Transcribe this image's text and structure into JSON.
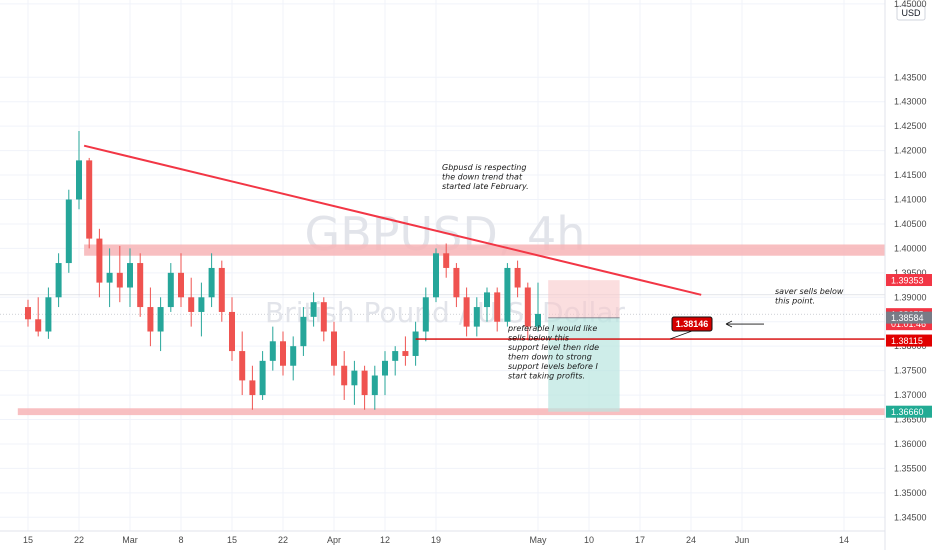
{
  "chart_data": {
    "type": "candlestick",
    "symbol_watermark": "GBPUSD, 4h",
    "name_watermark": "British Pound / U.S. Dollar",
    "currency_label": "USD",
    "x_ticks": [
      {
        "label": "15",
        "i": 0
      },
      {
        "label": "22",
        "i": 5
      },
      {
        "label": "Mar",
        "i": 10
      },
      {
        "label": "8",
        "i": 15
      },
      {
        "label": "15",
        "i": 20
      },
      {
        "label": "22",
        "i": 25
      },
      {
        "label": "Apr",
        "i": 30
      },
      {
        "label": "12",
        "i": 35
      },
      {
        "label": "19",
        "i": 40
      },
      {
        "label": "May",
        "i": 50
      },
      {
        "label": "10",
        "i": 55
      },
      {
        "label": "17",
        "i": 60
      },
      {
        "label": "24",
        "i": 65
      },
      {
        "label": "Jun",
        "i": 70
      },
      {
        "label": "14",
        "i": 80
      }
    ],
    "y_ticks": [
      "1.45000",
      "1.43500",
      "1.43000",
      "1.42500",
      "1.42000",
      "1.41500",
      "1.41000",
      "1.40500",
      "1.40000",
      "1.39500",
      "1.39000",
      "1.38500",
      "1.38000",
      "1.37500",
      "1.37000",
      "1.36500",
      "1.36000",
      "1.35500",
      "1.35000",
      "1.34500"
    ],
    "ylim": [
      1.3422,
      1.4508
    ],
    "price_tags": [
      {
        "value": 1.39353,
        "label": "1.39353",
        "color": "#f23645"
      },
      {
        "value": 1.38655,
        "label": "1.38655",
        "color": "#f23645",
        "sub": "01:01:46"
      },
      {
        "value": 1.38584,
        "label": "1.38584",
        "color": "#787b86"
      },
      {
        "value": 1.38115,
        "label": "1.38115",
        "color": "#e00000"
      },
      {
        "value": 1.3666,
        "label": "1.36660",
        "color": "#22ab94"
      }
    ],
    "candles": [
      {
        "i": 0,
        "o": 1.388,
        "h": 1.3895,
        "l": 1.384,
        "c": 1.3855
      },
      {
        "i": 1,
        "o": 1.3855,
        "h": 1.39,
        "l": 1.382,
        "c": 1.383
      },
      {
        "i": 2,
        "o": 1.383,
        "h": 1.392,
        "l": 1.3815,
        "c": 1.39
      },
      {
        "i": 3,
        "o": 1.39,
        "h": 1.399,
        "l": 1.388,
        "c": 1.397
      },
      {
        "i": 4,
        "o": 1.397,
        "h": 1.412,
        "l": 1.395,
        "c": 1.41
      },
      {
        "i": 5,
        "o": 1.41,
        "h": 1.424,
        "l": 1.408,
        "c": 1.418
      },
      {
        "i": 6,
        "o": 1.418,
        "h": 1.4185,
        "l": 1.4,
        "c": 1.402
      },
      {
        "i": 7,
        "o": 1.402,
        "h": 1.404,
        "l": 1.39,
        "c": 1.393
      },
      {
        "i": 8,
        "o": 1.393,
        "h": 1.4,
        "l": 1.388,
        "c": 1.395
      },
      {
        "i": 9,
        "o": 1.395,
        "h": 1.4005,
        "l": 1.389,
        "c": 1.392
      },
      {
        "i": 10,
        "o": 1.392,
        "h": 1.4,
        "l": 1.388,
        "c": 1.397
      },
      {
        "i": 11,
        "o": 1.397,
        "h": 1.399,
        "l": 1.386,
        "c": 1.388
      },
      {
        "i": 12,
        "o": 1.388,
        "h": 1.392,
        "l": 1.38,
        "c": 1.383
      },
      {
        "i": 13,
        "o": 1.383,
        "h": 1.39,
        "l": 1.379,
        "c": 1.388
      },
      {
        "i": 14,
        "o": 1.388,
        "h": 1.397,
        "l": 1.387,
        "c": 1.395
      },
      {
        "i": 15,
        "o": 1.395,
        "h": 1.399,
        "l": 1.388,
        "c": 1.39
      },
      {
        "i": 16,
        "o": 1.39,
        "h": 1.394,
        "l": 1.384,
        "c": 1.387
      },
      {
        "i": 17,
        "o": 1.387,
        "h": 1.393,
        "l": 1.382,
        "c": 1.39
      },
      {
        "i": 18,
        "o": 1.39,
        "h": 1.399,
        "l": 1.388,
        "c": 1.396
      },
      {
        "i": 19,
        "o": 1.396,
        "h": 1.3975,
        "l": 1.385,
        "c": 1.387
      },
      {
        "i": 20,
        "o": 1.387,
        "h": 1.39,
        "l": 1.377,
        "c": 1.379
      },
      {
        "i": 21,
        "o": 1.379,
        "h": 1.383,
        "l": 1.37,
        "c": 1.373
      },
      {
        "i": 22,
        "o": 1.373,
        "h": 1.376,
        "l": 1.367,
        "c": 1.37
      },
      {
        "i": 23,
        "o": 1.37,
        "h": 1.379,
        "l": 1.369,
        "c": 1.377
      },
      {
        "i": 24,
        "o": 1.377,
        "h": 1.384,
        "l": 1.375,
        "c": 1.381
      },
      {
        "i": 25,
        "o": 1.381,
        "h": 1.383,
        "l": 1.374,
        "c": 1.376
      },
      {
        "i": 26,
        "o": 1.376,
        "h": 1.382,
        "l": 1.373,
        "c": 1.38
      },
      {
        "i": 27,
        "o": 1.38,
        "h": 1.388,
        "l": 1.378,
        "c": 1.386
      },
      {
        "i": 28,
        "o": 1.386,
        "h": 1.391,
        "l": 1.384,
        "c": 1.389
      },
      {
        "i": 29,
        "o": 1.389,
        "h": 1.39,
        "l": 1.381,
        "c": 1.383
      },
      {
        "i": 30,
        "o": 1.383,
        "h": 1.385,
        "l": 1.374,
        "c": 1.376
      },
      {
        "i": 31,
        "o": 1.376,
        "h": 1.379,
        "l": 1.369,
        "c": 1.372
      },
      {
        "i": 32,
        "o": 1.372,
        "h": 1.377,
        "l": 1.368,
        "c": 1.375
      },
      {
        "i": 33,
        "o": 1.375,
        "h": 1.376,
        "l": 1.367,
        "c": 1.37
      },
      {
        "i": 34,
        "o": 1.37,
        "h": 1.376,
        "l": 1.367,
        "c": 1.374
      },
      {
        "i": 35,
        "o": 1.374,
        "h": 1.379,
        "l": 1.37,
        "c": 1.377
      },
      {
        "i": 36,
        "o": 1.377,
        "h": 1.38,
        "l": 1.374,
        "c": 1.379
      },
      {
        "i": 37,
        "o": 1.379,
        "h": 1.382,
        "l": 1.376,
        "c": 1.378
      },
      {
        "i": 38,
        "o": 1.378,
        "h": 1.385,
        "l": 1.376,
        "c": 1.383
      },
      {
        "i": 39,
        "o": 1.383,
        "h": 1.392,
        "l": 1.381,
        "c": 1.39
      },
      {
        "i": 40,
        "o": 1.39,
        "h": 1.4,
        "l": 1.389,
        "c": 1.399
      },
      {
        "i": 41,
        "o": 1.399,
        "h": 1.401,
        "l": 1.394,
        "c": 1.396
      },
      {
        "i": 42,
        "o": 1.396,
        "h": 1.397,
        "l": 1.388,
        "c": 1.39
      },
      {
        "i": 43,
        "o": 1.39,
        "h": 1.392,
        "l": 1.382,
        "c": 1.384
      },
      {
        "i": 44,
        "o": 1.384,
        "h": 1.39,
        "l": 1.382,
        "c": 1.388
      },
      {
        "i": 45,
        "o": 1.388,
        "h": 1.392,
        "l": 1.385,
        "c": 1.391
      },
      {
        "i": 46,
        "o": 1.391,
        "h": 1.392,
        "l": 1.383,
        "c": 1.385
      },
      {
        "i": 47,
        "o": 1.385,
        "h": 1.397,
        "l": 1.384,
        "c": 1.396
      },
      {
        "i": 48,
        "o": 1.396,
        "h": 1.3975,
        "l": 1.39,
        "c": 1.392
      },
      {
        "i": 49,
        "o": 1.392,
        "h": 1.393,
        "l": 1.3812,
        "c": 1.384
      },
      {
        "i": 50,
        "o": 1.384,
        "h": 1.393,
        "l": 1.383,
        "c": 1.3866
      }
    ],
    "trendline": {
      "x1": 5.5,
      "y1": 1.421,
      "x2": 66,
      "y2": 1.3905,
      "color": "#f23645"
    },
    "zones": [
      {
        "from": 1.3985,
        "to": 1.4008,
        "x1": 5.5,
        "x2": 90,
        "color": "#f7b4b6"
      },
      {
        "from": 1.3659,
        "to": 1.3673,
        "x1": -1,
        "x2": 90,
        "color": "#f7b4b6"
      }
    ],
    "support_line": {
      "value": 1.38146,
      "x1": 38,
      "x2": 90,
      "color": "#d50000"
    },
    "position": {
      "x1": 51,
      "x2": 58,
      "entry": 1.3858,
      "stop": 1.3935,
      "target": 1.3666
    },
    "labels": [
      {
        "text": "1.38146",
        "value": 1.38146
      }
    ],
    "annotations": [
      {
        "id": "note-trend",
        "lines": [
          "Gbpusd is respecting",
          "the down trend that",
          "started late February."
        ]
      },
      {
        "id": "note-support",
        "lines": [
          "preferable I would like",
          "sells below this",
          "support level then ride",
          "them down to strong",
          "support levels before I",
          "start taking profits."
        ]
      },
      {
        "id": "note-saver",
        "lines": [
          "saver sells below",
          "this point."
        ]
      }
    ]
  }
}
